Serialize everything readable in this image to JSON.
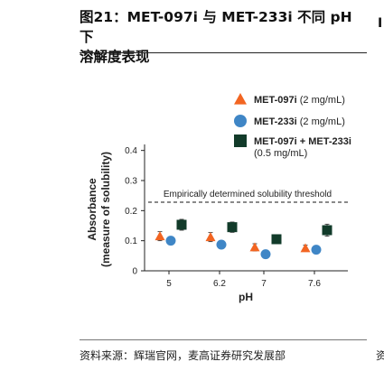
{
  "figure": {
    "title_line1": "图21：MET-097i 与 MET-233i 不同 pH 下",
    "title_line2": "溶解度表现",
    "source": "资料来源：辉瑞官网，麦高证券研究发展部",
    "side_mark_top": "I",
    "side_mark_bottom": "资"
  },
  "chart_data": {
    "type": "scatter",
    "categories": [
      "5",
      "6.2",
      "7",
      "7.6"
    ],
    "xlabel": "pH",
    "ylabel_line1": "Absorbance",
    "ylabel_line2": "(measure of solubility)",
    "ylim": [
      0,
      0.45
    ],
    "yticks": [
      "0",
      "0.1",
      "0.2",
      "0.3",
      "0.4"
    ],
    "ytick_values": [
      0,
      0.1,
      0.2,
      0.3,
      0.4
    ],
    "grid": false,
    "legend_position": "top-right",
    "threshold": {
      "value": 0.228,
      "label": "Empirically determined solubility threshold",
      "color": "#444444"
    },
    "series": [
      {
        "name": "MET-097i",
        "name_suffix": " (2 mg/mL)",
        "name_line2": "",
        "marker": "triangle",
        "color": "#f26522",
        "values": [
          0.115,
          0.112,
          0.078,
          0.075
        ],
        "errors": [
          0.015,
          0.015,
          0.012,
          0.01
        ]
      },
      {
        "name": "MET-233i",
        "name_suffix": " (2 mg/mL)",
        "name_line2": "",
        "marker": "circle",
        "color": "#3f86c6",
        "values": [
          0.1,
          0.087,
          0.055,
          0.07
        ],
        "errors": [
          0,
          0,
          0,
          0
        ]
      },
      {
        "name": "MET-097i + MET-233i",
        "name_suffix": "",
        "name_line2": "(0.5 mg/mL)",
        "marker": "square",
        "color": "#123b2a",
        "values": [
          0.153,
          0.145,
          0.105,
          0.135
        ],
        "errors": [
          0.018,
          0.017,
          0.01,
          0.02
        ]
      }
    ]
  }
}
